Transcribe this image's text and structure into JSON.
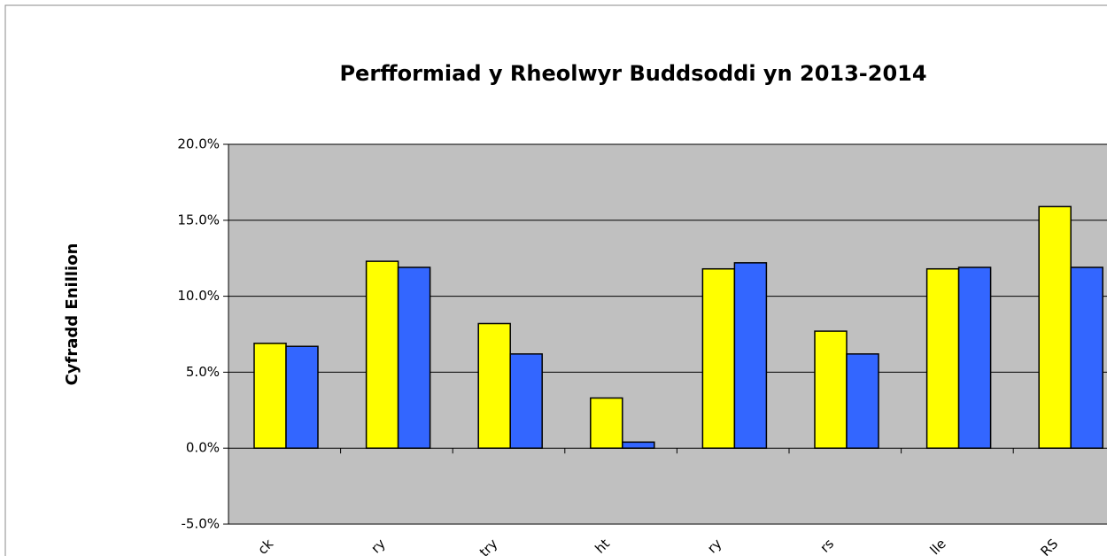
{
  "chart_data": {
    "type": "bar",
    "title": "Perfformiad y Rheolwyr Buddsoddi yn 2013-2014",
    "y_label": "Cyfradd Enillion",
    "categories": [
      "ck",
      "ry",
      "try",
      "ht",
      "ry",
      "rs",
      "lle",
      "RS"
    ],
    "series": [
      {
        "color": "#ffff00",
        "values": [
          6.9,
          12.3,
          8.2,
          3.3,
          11.8,
          7.7,
          11.8,
          15.9
        ]
      },
      {
        "color": "#3366ff",
        "values": [
          6.7,
          11.9,
          6.2,
          0.4,
          12.2,
          6.2,
          11.9,
          11.9
        ]
      }
    ],
    "ylim": [
      -5,
      20
    ],
    "yticks": [
      {
        "value": -5,
        "label": "-5.0%"
      },
      {
        "value": 0,
        "label": "0.0%"
      },
      {
        "value": 5,
        "label": "5.0%"
      },
      {
        "value": 10,
        "label": "10.0%"
      },
      {
        "value": 15,
        "label": "15.0%"
      },
      {
        "value": 20,
        "label": "20.0%"
      }
    ],
    "plot_background": "#c0c0c0",
    "grid": true
  }
}
